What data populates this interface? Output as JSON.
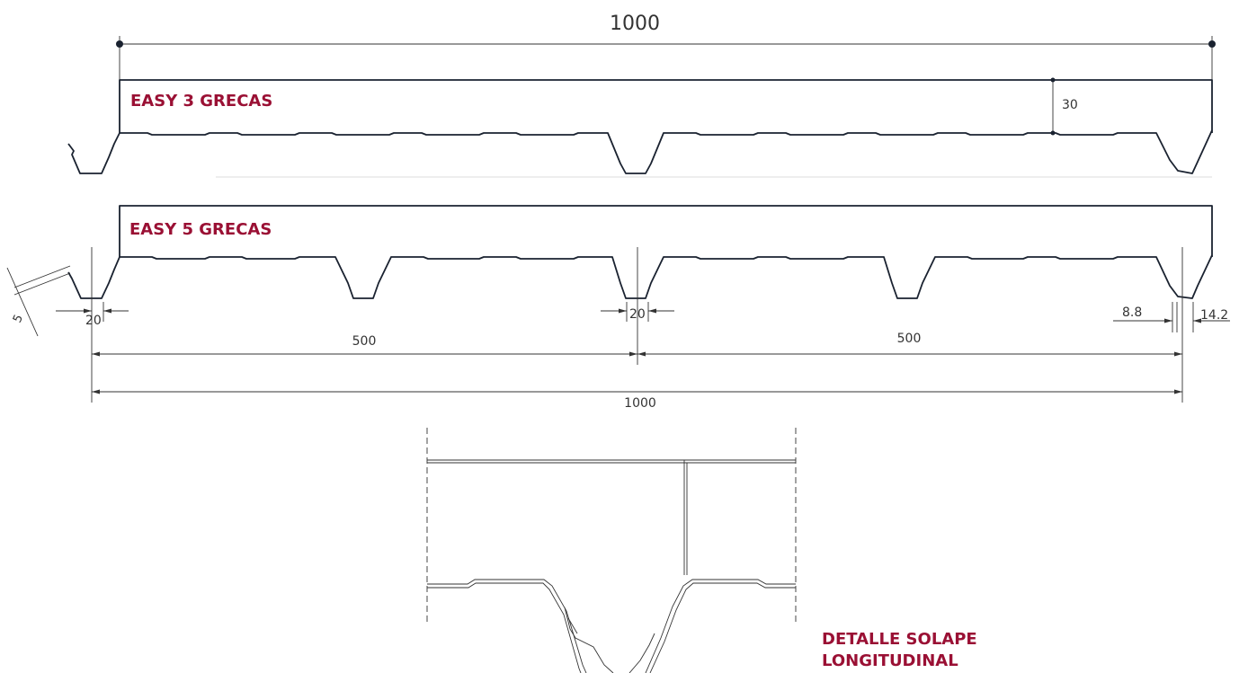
{
  "profile_top": {
    "name": "EASY 3 GRECAS",
    "width_dim": "1000",
    "height_dim": "30"
  },
  "profile_bottom": {
    "name": "EASY 5 GRECAS",
    "thickness_dim": "5",
    "rib_bottom_left": "20",
    "rib_bottom_center": "20",
    "half_left": "500",
    "half_right": "500",
    "total_width": "1000",
    "edge_dim_a": "8.8",
    "edge_dim_b": "14.2"
  },
  "detail": {
    "title_line1": "DETALLE SOLAPE",
    "title_line2": "LONGITUDINAL"
  },
  "colors": {
    "title_color": "#9a1034",
    "line_color": "#1a2230"
  }
}
